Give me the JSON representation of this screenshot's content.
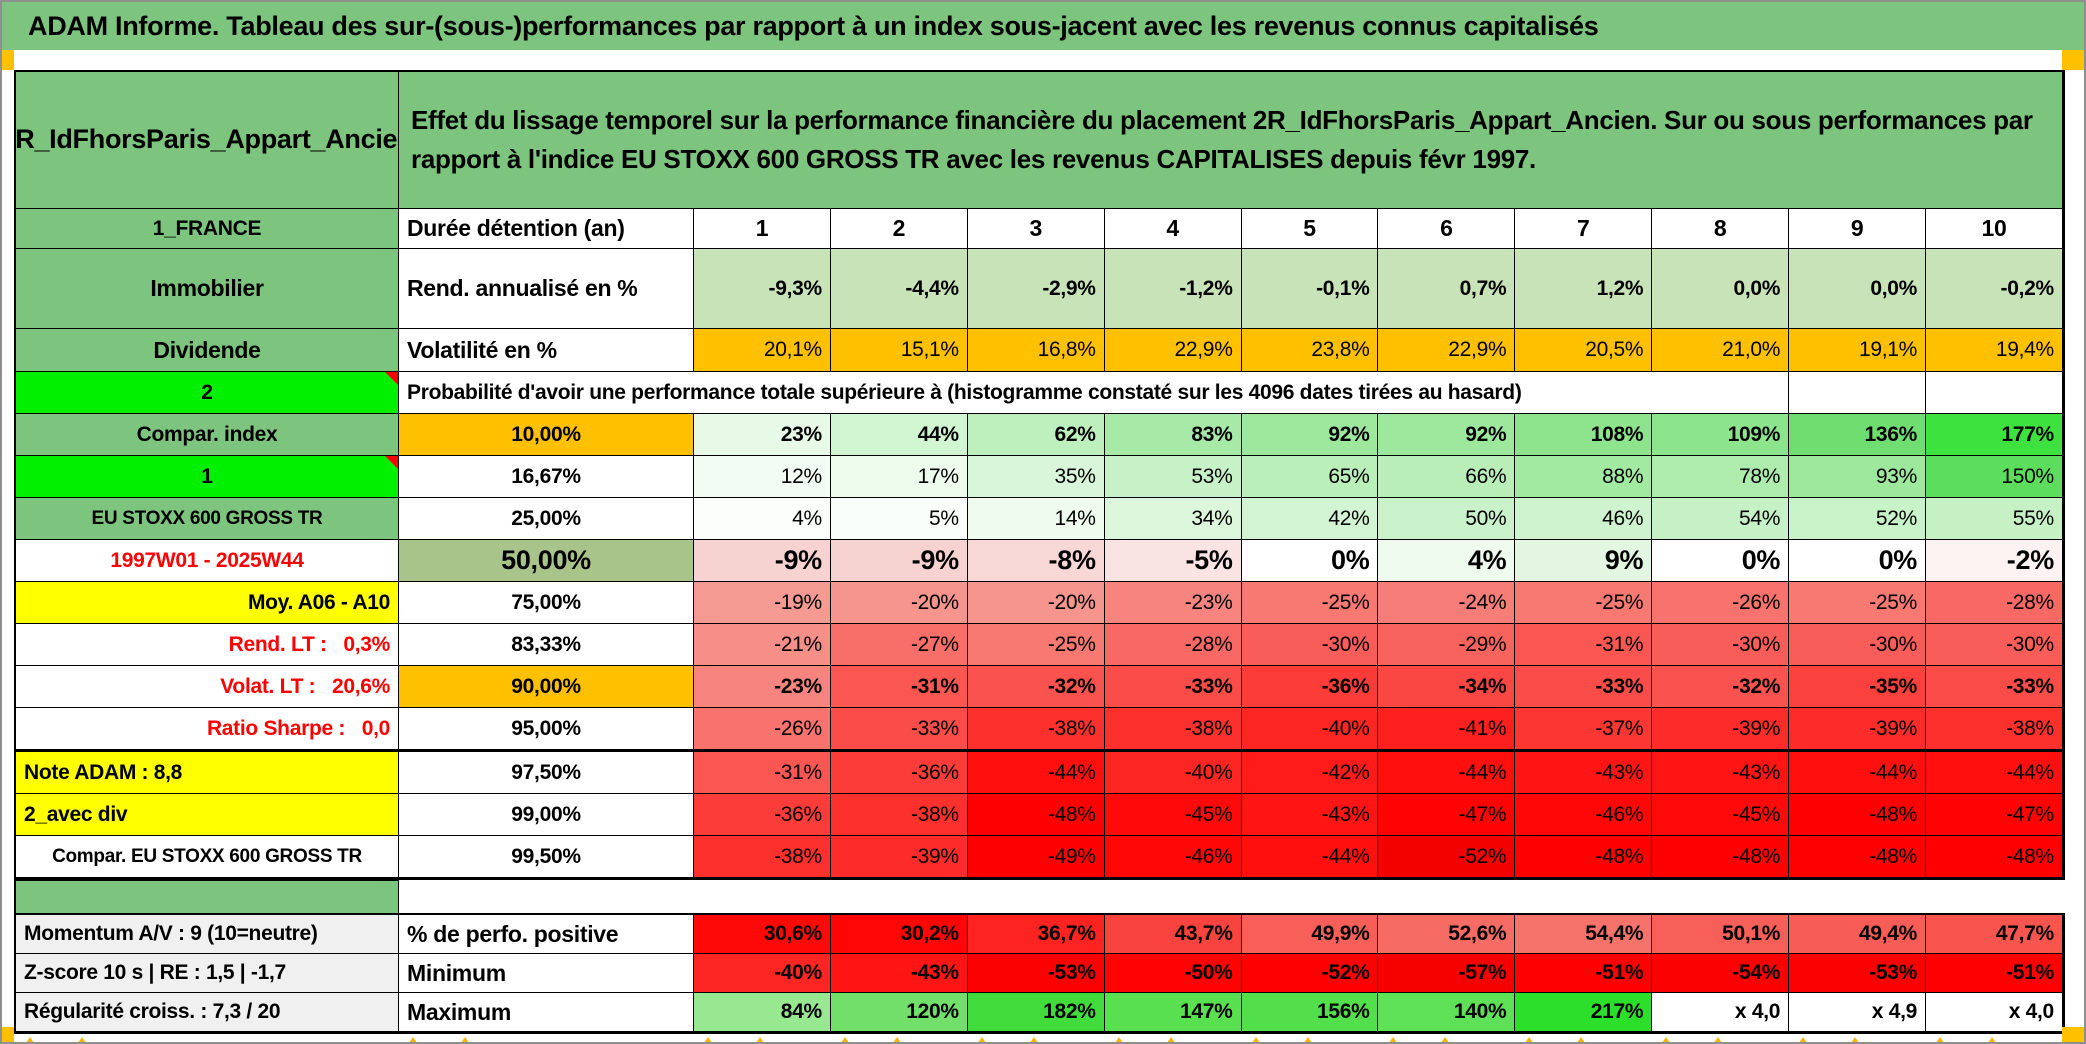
{
  "title": "ADAM Informe. Tableau des sur-(sous-)performances par rapport à un index sous-jacent avec les revenus connus capitalisés",
  "header": {
    "product": "2R_IdFhorsParis_Appart_Ancien",
    "description": "Effet du lissage temporel sur la performance financière du placement 2R_IdFhorsParis_Appart_Ancien. Sur ou sous performances par rapport à l'indice EU STOXX 600 GROSS TR avec les revenus CAPITALISES depuis févr 1997."
  },
  "colors": {
    "green_header": "#7dc57e",
    "bright_green": "#00f000",
    "orange": "#ffc000",
    "yellow": "#ffff00",
    "olive": "#a9c48b",
    "gray_label": "#f0f0f0",
    "marker_orange": "#ffb300",
    "red_text": "#ff0000"
  },
  "metric_rows": [
    {
      "label": "1_FRANCE",
      "metric": "Durée détention (an)",
      "bold": true,
      "bg": "#ffffff",
      "values": [
        "1",
        "2",
        "3",
        "4",
        "5",
        "6",
        "7",
        "8",
        "9",
        "10"
      ]
    },
    {
      "label": "Immobilier",
      "metric": "Rend. annualisé en %",
      "bold": true,
      "bg": "#c9e3b9",
      "values": [
        "-9,3%",
        "-4,4%",
        "-2,9%",
        "-1,2%",
        "-0,1%",
        "0,7%",
        "1,2%",
        "0,0%",
        "0,0%",
        "-0,2%"
      ]
    },
    {
      "label": "Dividende",
      "metric": "Volatilité en %",
      "bold": false,
      "bg": "#ffc000",
      "values": [
        "20,1%",
        "15,1%",
        "16,8%",
        "22,9%",
        "23,8%",
        "22,9%",
        "20,5%",
        "21,0%",
        "19,1%",
        "19,4%"
      ]
    }
  ],
  "probability": {
    "corner_label": "2",
    "title": "Probabilité d'avoir une performance totale supérieure à (histogramme constaté sur les 4096 dates tirées au hasard)",
    "rows": [
      {
        "label": "Compar. index",
        "label_bg": "#7dc57e",
        "pct": "10,00%",
        "pct_bg": "#ffc000",
        "bold": true,
        "values": [
          "23%",
          "44%",
          "62%",
          "83%",
          "92%",
          "92%",
          "108%",
          "109%",
          "136%",
          "177%"
        ],
        "bgs": [
          "#e7f9e7",
          "#d1f4d1",
          "#bef0be",
          "#a7eaa7",
          "#9ee89e",
          "#9ee89e",
          "#8de48d",
          "#8ce48c",
          "#6fdd6f",
          "#3ee23e"
        ]
      },
      {
        "label": "1",
        "label_bg": "#00f000",
        "flag": true,
        "pct": "16,67%",
        "pct_bg": "#ffffff",
        "bold": false,
        "values": [
          "12%",
          "17%",
          "35%",
          "53%",
          "65%",
          "66%",
          "88%",
          "78%",
          "93%",
          "150%"
        ],
        "bgs": [
          "#f2fcf2",
          "#edfbed",
          "#daf6da",
          "#c7f2c7",
          "#baefba",
          "#b9eeb9",
          "#a2e9a2",
          "#adecad",
          "#9de89d",
          "#5cdd5c"
        ]
      },
      {
        "label": "EU STOXX 600 GROSS TR",
        "label_bg": "#7dc57e",
        "small": true,
        "pct": "25,00%",
        "pct_bg": "#ffffff",
        "bold": false,
        "values": [
          "4%",
          "5%",
          "14%",
          "34%",
          "42%",
          "50%",
          "46%",
          "54%",
          "52%",
          "55%"
        ],
        "bgs": [
          "#fbfefb",
          "#fafefa",
          "#f0fbf0",
          "#dbf6db",
          "#d3f4d3",
          "#caf2ca",
          "#cef3ce",
          "#c6f1c6",
          "#c8f2c8",
          "#c5f1c5"
        ]
      },
      {
        "label": "1997W01 - 2025W44",
        "label_bg": "#ffffff",
        "label_color": "#ff0000",
        "pct": "50,00%",
        "pct_bg": "#a9c48b",
        "big": true,
        "bold": true,
        "values": [
          "-9%",
          "-9%",
          "-8%",
          "-5%",
          "0%",
          "4%",
          "9%",
          "0%",
          "0%",
          "-2%"
        ],
        "bgs": [
          "#f6d3d1",
          "#f6d3d1",
          "#f7d8d6",
          "#fae4e3",
          "#ffffff",
          "#effaef",
          "#e2f6e2",
          "#ffffff",
          "#ffffff",
          "#fdf2f2"
        ]
      },
      {
        "label": "Moy. A06 - A10",
        "label_bg": "#ffff00",
        "label_align": "right",
        "pct": "75,00%",
        "pct_bg": "#ffffff",
        "bold": false,
        "values": [
          "-19%",
          "-20%",
          "-20%",
          "-23%",
          "-25%",
          "-24%",
          "-25%",
          "-26%",
          "-25%",
          "-28%"
        ],
        "bgs": [
          "#f59a93",
          "#f5958e",
          "#f5958e",
          "#f7847e",
          "#f77972",
          "#f77e78",
          "#f77972",
          "#f8736d",
          "#f77972",
          "#f86864"
        ]
      },
      {
        "label": "Rend. LT :   0,3%",
        "label_bg": "#ffffff",
        "label_color": "#ff0000",
        "label_align": "right",
        "pct": "83,33%",
        "pct_bg": "#ffffff",
        "bold": false,
        "values": [
          "-21%",
          "-27%",
          "-25%",
          "-28%",
          "-30%",
          "-29%",
          "-31%",
          "-30%",
          "-30%",
          "-30%"
        ],
        "bgs": [
          "#f68f88",
          "#f86e69",
          "#f77972",
          "#f86864",
          "#f95d59",
          "#f9635e",
          "#fa5753",
          "#f95d59",
          "#f95d59",
          "#f95d59"
        ]
      },
      {
        "label": "Volat. LT :   20,6%",
        "label_bg": "#ffffff",
        "label_color": "#ff0000",
        "label_align": "right",
        "pct": "90,00%",
        "pct_bg": "#ffc000",
        "bold": true,
        "values": [
          "-23%",
          "-31%",
          "-32%",
          "-33%",
          "-36%",
          "-34%",
          "-33%",
          "-32%",
          "-35%",
          "-33%"
        ],
        "bgs": [
          "#f7847e",
          "#fa5753",
          "#fa524e",
          "#fa4d49",
          "#fc3c38",
          "#fb4743",
          "#fa4d49",
          "#fa524e",
          "#fb413e",
          "#fa4d49"
        ]
      },
      {
        "label": "Ratio Sharpe :   0,0",
        "label_bg": "#ffffff",
        "label_color": "#ff0000",
        "label_align": "right",
        "pct": "95,00%",
        "pct_bg": "#ffffff",
        "bold": false,
        "values": [
          "-26%",
          "-33%",
          "-38%",
          "-38%",
          "-40%",
          "-41%",
          "-37%",
          "-39%",
          "-39%",
          "-38%"
        ],
        "bgs": [
          "#f8736d",
          "#fa4d49",
          "#fc312e",
          "#fc312e",
          "#fd2623",
          "#fe201e",
          "#fc3633",
          "#fd2b29",
          "#fd2b29",
          "#fc312e"
        ]
      },
      {
        "label": "Note ADAM : 8,8",
        "label_bg": "#ffff00",
        "label_align": "left",
        "thick_top": true,
        "pct": "97,50%",
        "pct_bg": "#ffffff",
        "bold": false,
        "values": [
          "-31%",
          "-36%",
          "-44%",
          "-40%",
          "-42%",
          "-44%",
          "-43%",
          "-43%",
          "-44%",
          "-44%"
        ],
        "bgs": [
          "#fa5753",
          "#fc3c38",
          "#ff100f",
          "#fd2623",
          "#fe1b19",
          "#ff100f",
          "#fe1514",
          "#fe1514",
          "#ff100f",
          "#ff100f"
        ]
      },
      {
        "label": "2_avec div",
        "label_bg": "#ffff00",
        "label_align": "left",
        "pct": "99,00%",
        "pct_bg": "#ffffff",
        "bold": false,
        "values": [
          "-36%",
          "-38%",
          "-48%",
          "-45%",
          "-43%",
          "-47%",
          "-46%",
          "-45%",
          "-48%",
          "-47%"
        ],
        "bgs": [
          "#fc3c38",
          "#fc312e",
          "#ff0000",
          "#ff0a0a",
          "#fe1514",
          "#ff0303",
          "#ff0707",
          "#ff0a0a",
          "#ff0000",
          "#ff0303"
        ]
      },
      {
        "label": "Compar. EU STOXX 600 GROSS TR",
        "label_bg": "#ffffff",
        "small": true,
        "pct": "99,50%",
        "pct_bg": "#ffffff",
        "bold": false,
        "values": [
          "-38%",
          "-39%",
          "-49%",
          "-46%",
          "-44%",
          "-52%",
          "-48%",
          "-48%",
          "-48%",
          "-48%"
        ],
        "bgs": [
          "#fc312e",
          "#fd2b29",
          "#fd0000",
          "#ff0707",
          "#ff100f",
          "#f30000",
          "#ff0000",
          "#ff0000",
          "#ff0000",
          "#ff0000"
        ]
      }
    ]
  },
  "summary_rows": [
    {
      "label": "Momentum A/V : 9 (10=neutre)",
      "metric": "% de perfo. positive",
      "values": [
        "30,6%",
        "30,2%",
        "36,7%",
        "43,7%",
        "49,9%",
        "52,6%",
        "54,4%",
        "50,1%",
        "49,4%",
        "47,7%"
      ],
      "bgs": [
        "#ff0808",
        "#ff0606",
        "#fc2321",
        "#f9433f",
        "#f75f58",
        "#f66b64",
        "#f5736b",
        "#f76059",
        "#f75c56",
        "#f8554f"
      ]
    },
    {
      "label": "Z-score 10 s | RE : 1,5 | -1,7",
      "metric": "Minimum",
      "values": [
        "-40%",
        "-43%",
        "-53%",
        "-50%",
        "-52%",
        "-57%",
        "-51%",
        "-54%",
        "-53%",
        "-51%"
      ],
      "bgs": [
        "#fd2623",
        "#fe1514",
        "#fb0000",
        "#ff0202",
        "#fe0000",
        "#f60000",
        "#ff0000",
        "#fa0000",
        "#fb0000",
        "#ff0000"
      ]
    },
    {
      "label": "Régularité croiss. : 7,3 / 20",
      "metric": "Maximum",
      "values": [
        "84%",
        "120%",
        "182%",
        "147%",
        "156%",
        "140%",
        "217%",
        "x 4,0",
        "x 4,9",
        "x 4,0"
      ],
      "bgs": [
        "#98e892",
        "#71df69",
        "#41dc3b",
        "#58e051",
        "#52df4b",
        "#5ee157",
        "#2bdf2b",
        "#ffffff",
        "#ffffff",
        "#ffffff"
      ]
    }
  ]
}
